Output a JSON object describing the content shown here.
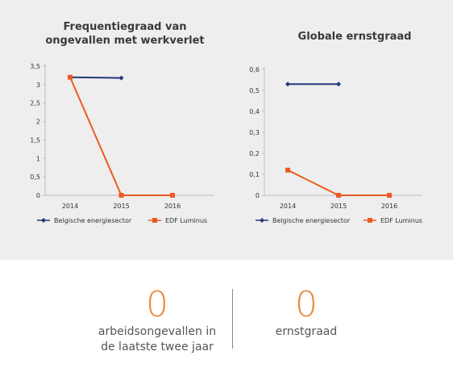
{
  "colors": {
    "panel_bg": "#eeeeee",
    "belgian": "#23397a",
    "edf": "#ec5a24",
    "accent": "#ee8a3a"
  },
  "chart_data": [
    {
      "type": "line",
      "title": "Frequentiegraad van ongevallen met werkverlet",
      "x": [
        "2014",
        "2015",
        "2016"
      ],
      "yticks": [
        "0",
        "0,5",
        "1",
        "1,5",
        "2",
        "2,5",
        "3",
        "3,5"
      ],
      "ylim": [
        0,
        3.5
      ],
      "series": [
        {
          "name": "Belgische energiesector",
          "values": [
            3.2,
            3.18,
            null
          ],
          "marker": "diamond",
          "color": "#23397a"
        },
        {
          "name": "EDF Luminus",
          "values": [
            3.2,
            0,
            0
          ],
          "marker": "square",
          "color": "#ec5a24"
        }
      ],
      "legend": "bottom"
    },
    {
      "type": "line",
      "title": "Globale ernstgraad",
      "x": [
        "2014",
        "2015",
        "2016"
      ],
      "yticks": [
        "0",
        "0,1",
        "0,2",
        "0,3",
        "0,4",
        "0,5",
        "0,6"
      ],
      "ylim": [
        0,
        0.6
      ],
      "series": [
        {
          "name": "Belgische energiesector",
          "values": [
            0.53,
            0.53,
            null
          ],
          "marker": "diamond",
          "color": "#23397a"
        },
        {
          "name": "EDF Luminus",
          "values": [
            0.12,
            0,
            0
          ],
          "marker": "square",
          "color": "#ec5a24"
        }
      ],
      "legend": "bottom"
    }
  ],
  "stats": [
    {
      "value": "0",
      "label_line1": "arbeidsongevallen in",
      "label_line2": "de laatste twee jaar"
    },
    {
      "value": "0",
      "label_line1": "ernstgraad"
    }
  ]
}
